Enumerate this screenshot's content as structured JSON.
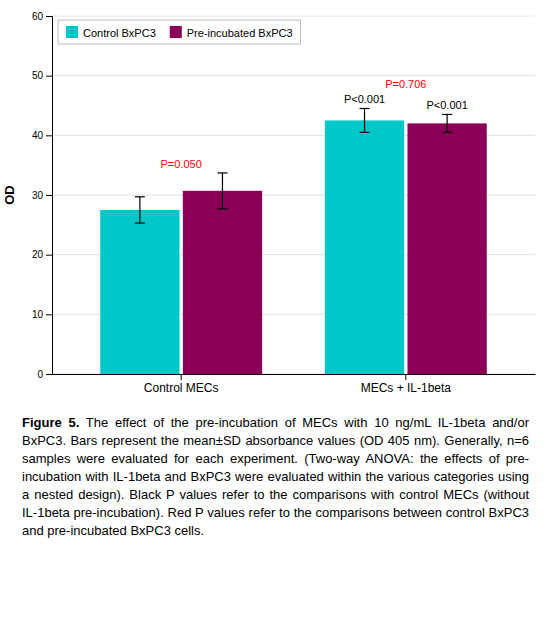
{
  "chart_data": {
    "type": "bar",
    "categories": [
      "Control MECs",
      "MECs + IL-1beta"
    ],
    "series": [
      {
        "name": "Control BxPC3",
        "color": "#00C8C8",
        "values": [
          27.5,
          42.5
        ],
        "errors": [
          2.2,
          2.0
        ]
      },
      {
        "name": "Pre-incubated BxPC3",
        "color": "#8B0057",
        "values": [
          30.7,
          42.0
        ],
        "errors": [
          3.0,
          1.5
        ]
      }
    ],
    "y_label": "OD",
    "ylim": [
      0,
      60
    ],
    "yticks": [
      0,
      10,
      20,
      30,
      40,
      50,
      60
    ],
    "grid": true,
    "legend": "upper-left",
    "annotations": [
      {
        "text": "P=0.050",
        "color": "red",
        "x": "Control MECs"
      },
      {
        "text": "P=0.706",
        "color": "red",
        "x": "MECs + IL-1beta"
      },
      {
        "text": "P<0.001",
        "color": "black",
        "x": "MECs + IL-1beta",
        "series": "Control BxPC3"
      },
      {
        "text": "P<0.001",
        "color": "black",
        "x": "MECs + IL-1beta",
        "series": "Pre-incubated BxPC3"
      }
    ],
    "caption": {
      "label": "Figure 5.",
      "text": "The effect of the pre-incubation of MECs with 10 ng/mL IL-1beta and/or BxPC3. Bars represent the mean±SD absorbance values (OD 405 nm). Generally, n=6 samples were evaluated for each experiment. (Two-way ANOVA: the effects of pre-incubation with IL-1beta and BxPC3 were evaluated within the various categories using a nested design). Black P values refer to the comparisons with control MECs (without IL-1beta pre-incubation). Red P values refer to the comparisons between control BxPC3 and pre-incubated BxPC3 cells."
    }
  }
}
